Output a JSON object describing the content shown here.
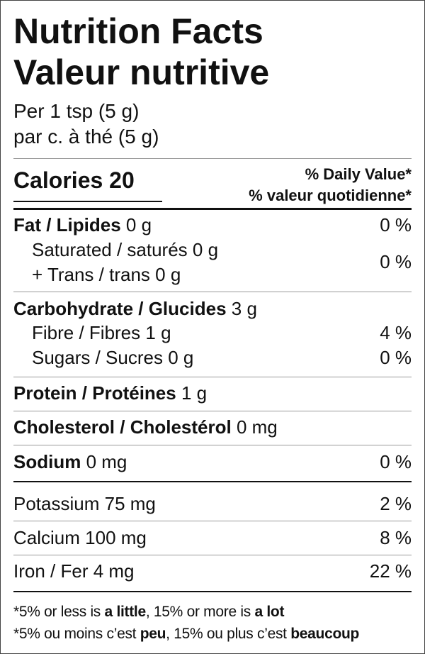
{
  "header": {
    "title_en": "Nutrition Facts",
    "title_fr": "Valeur nutritive",
    "serving_en": "Per 1 tsp (5 g)",
    "serving_fr": "par c. à thé (5 g)"
  },
  "calories": {
    "label": "Calories",
    "value": 20
  },
  "daily_value_header": {
    "en": "% Daily Value*",
    "fr": "% valeur quotidienne*"
  },
  "nutrients": [
    {
      "name": "Fat / Lipides",
      "amount": "0 g",
      "dv": "0 %"
    },
    {
      "name": "Saturated / saturés",
      "amount": "0 g",
      "name2": "+ Trans / trans",
      "amount2": "0 g",
      "dv": "0 %"
    },
    {
      "name": "Carbohydrate / Glucides",
      "amount": "3 g"
    },
    {
      "name": "Fibre / Fibres",
      "amount": "1 g",
      "dv": "4 %"
    },
    {
      "name": "Sugars / Sucres",
      "amount": "0 g",
      "dv": "0 %"
    },
    {
      "name": "Protein / Protéines",
      "amount": "1 g"
    },
    {
      "name": "Cholesterol / Cholestérol",
      "amount": "0 mg"
    },
    {
      "name": "Sodium",
      "amount": "0 mg",
      "dv": "0 %"
    },
    {
      "name": "Potassium",
      "amount": "75 mg",
      "dv": "2 %"
    },
    {
      "name": "Calcium",
      "amount": "100 mg",
      "dv": "8 %"
    },
    {
      "name": "Iron / Fer",
      "amount": "4 mg",
      "dv": "22 %"
    }
  ],
  "footnote": {
    "line1": [
      "*5% or less is ",
      "a little",
      ", 15% or more is ",
      "a lot"
    ],
    "line2": [
      "*5% ou moins c’est ",
      "peu",
      ", 15% ou plus c’est ",
      "beaucoup"
    ]
  }
}
